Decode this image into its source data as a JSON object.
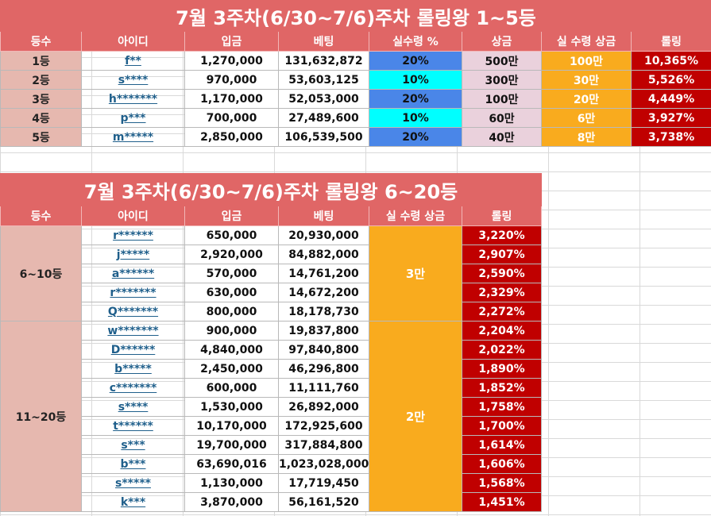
{
  "top": {
    "title": "7월 3주차(6/30~7/6)주차 롤링왕 1~5등",
    "headers": [
      "등수",
      "아이디",
      "입금",
      "베팅",
      "실수령 %",
      "상금",
      "실 수령 상금",
      "롤링"
    ],
    "rows": [
      {
        "rank": "1등",
        "id": "f**",
        "deposit": "1,270,000",
        "bet": "131,632,872",
        "pct": "20%",
        "prize": "500만",
        "real": "100만",
        "rolling": "10,365%",
        "pct_color": "blue"
      },
      {
        "rank": "2등",
        "id": "s****",
        "deposit": "970,000",
        "bet": "53,603,125",
        "pct": "10%",
        "prize": "300만",
        "real": "30만",
        "rolling": "5,526%",
        "pct_color": "cyan"
      },
      {
        "rank": "3등",
        "id": "h*******",
        "deposit": "1,170,000",
        "bet": "52,053,000",
        "pct": "20%",
        "prize": "100만",
        "real": "20만",
        "rolling": "4,449%",
        "pct_color": "blue"
      },
      {
        "rank": "4등",
        "id": "p***",
        "deposit": "700,000",
        "bet": "27,489,600",
        "pct": "10%",
        "prize": "60만",
        "real": "6만",
        "rolling": "3,927%",
        "pct_color": "cyan"
      },
      {
        "rank": "5등",
        "id": "m*****",
        "deposit": "2,850,000",
        "bet": "106,539,500",
        "pct": "20%",
        "prize": "40만",
        "real": "8만",
        "rolling": "3,738%",
        "pct_color": "blue"
      }
    ]
  },
  "bottom": {
    "title": "7월 3주차(6/30~7/6)주차 롤링왕 6~20등",
    "headers": [
      "등수",
      "아이디",
      "입금",
      "베팅",
      "실 수령 상금",
      "롤링"
    ],
    "groups": [
      {
        "rank": "6~10등",
        "real": "3만",
        "rows": [
          {
            "id": "r******",
            "deposit": "650,000",
            "bet": "20,930,000",
            "rolling": "3,220%"
          },
          {
            "id": "j*****",
            "deposit": "2,920,000",
            "bet": "84,882,000",
            "rolling": "2,907%"
          },
          {
            "id": "a******",
            "deposit": "570,000",
            "bet": "14,761,200",
            "rolling": "2,590%"
          },
          {
            "id": "r*******",
            "deposit": "630,000",
            "bet": "14,672,200",
            "rolling": "2,329%"
          },
          {
            "id": "Q*******",
            "deposit": "800,000",
            "bet": "18,178,730",
            "rolling": "2,272%"
          }
        ]
      },
      {
        "rank": "11~20등",
        "real": "2만",
        "rows": [
          {
            "id": "w*******",
            "deposit": "900,000",
            "bet": "19,837,800",
            "rolling": "2,204%"
          },
          {
            "id": "D******",
            "deposit": "4,840,000",
            "bet": "97,840,800",
            "rolling": "2,022%"
          },
          {
            "id": "b*****",
            "deposit": "2,450,000",
            "bet": "46,296,800",
            "rolling": "1,890%"
          },
          {
            "id": "c*******",
            "deposit": "600,000",
            "bet": "11,111,760",
            "rolling": "1,852%"
          },
          {
            "id": "s****",
            "deposit": "1,530,000",
            "bet": "26,892,000",
            "rolling": "1,758%"
          },
          {
            "id": "t******",
            "deposit": "10,170,000",
            "bet": "172,925,600",
            "rolling": "1,700%"
          },
          {
            "id": "s***",
            "deposit": "19,700,000",
            "bet": "317,884,800",
            "rolling": "1,614%"
          },
          {
            "id": "b***",
            "deposit": "63,690,016",
            "bet": "1,023,028,000",
            "rolling": "1,606%"
          },
          {
            "id": "s*****",
            "deposit": "1,130,000",
            "bet": "17,719,450",
            "rolling": "1,568%"
          },
          {
            "id": "k***",
            "deposit": "3,870,000",
            "bet": "56,161,520",
            "rolling": "1,451%"
          }
        ]
      }
    ]
  }
}
